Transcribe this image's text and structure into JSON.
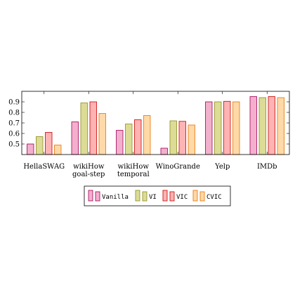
{
  "chart_data": {
    "type": "bar",
    "categories": [
      [
        "HellaSWAG"
      ],
      [
        "wikiHow",
        "goal-step"
      ],
      [
        "wikiHow",
        "temporal"
      ],
      [
        "WinoGrande"
      ],
      [
        "Yelp"
      ],
      [
        "IMDb"
      ]
    ],
    "series": [
      {
        "name": "Vanilla",
        "fill": "#f2b0cc",
        "stroke": "#a0005a",
        "values": [
          0.5,
          0.71,
          0.63,
          0.46,
          0.9,
          0.95
        ]
      },
      {
        "name": "VI",
        "fill": "#dcdc96",
        "stroke": "#8c8c1e",
        "values": [
          0.57,
          0.89,
          0.69,
          0.72,
          0.9,
          0.94
        ]
      },
      {
        "name": "VIC",
        "fill": "#ffb4b4",
        "stroke": "#c80000",
        "values": [
          0.61,
          0.9,
          0.73,
          0.715,
          0.905,
          0.95
        ]
      },
      {
        "name": "CVIC",
        "fill": "#ffd9a8",
        "stroke": "#e67300",
        "values": [
          0.49,
          0.79,
          0.77,
          0.68,
          0.9,
          0.94
        ]
      }
    ],
    "yticks": [
      "0.5",
      "0.6",
      "0.7",
      "0.8",
      "0.9"
    ],
    "ylim": [
      0.4,
      1.0
    ],
    "legend_position": "bottom-center",
    "title": "",
    "xlabel": "",
    "ylabel": ""
  }
}
